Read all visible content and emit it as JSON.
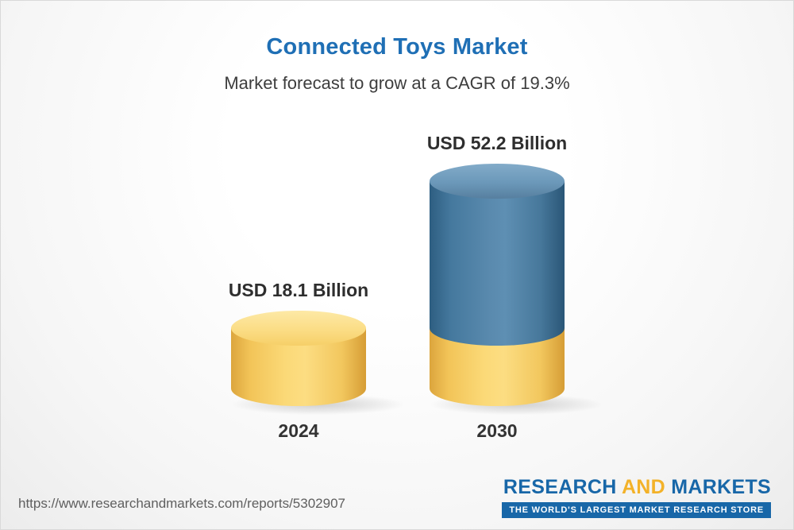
{
  "chart_data": {
    "type": "bar",
    "title": "Connected Toys Market",
    "subtitle": "Market forecast to grow at a CAGR of 19.3%",
    "categories": [
      "2024",
      "2030"
    ],
    "values": [
      18.1,
      52.2
    ],
    "value_labels": [
      "USD 18.1 Billion",
      "USD 52.2 Billion"
    ],
    "unit": "USD Billion",
    "cagr_percent": 19.3,
    "legend": "none",
    "layout": "two 3D cylinder bars, baseline aligned, value labels above bars, year labels below bars",
    "colors": {
      "title_accent": "#1F6FB5",
      "bar_2024": "#F8D470",
      "bar_2030_growth": "#4E81A8",
      "bar_2030_base": "#F8D470"
    }
  },
  "footer": {
    "url": "https://www.researchandmarkets.com/reports/5302907",
    "logo": {
      "research": "RESEARCH",
      "and": "AND",
      "markets": "MARKETS",
      "tagline": "THE WORLD'S LARGEST MARKET RESEARCH STORE",
      "brand_blue": "#1867A8",
      "brand_yellow": "#F3B229"
    }
  }
}
